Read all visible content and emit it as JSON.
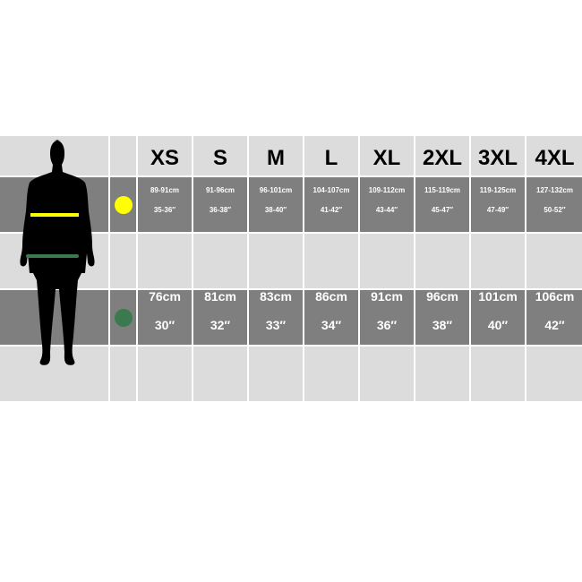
{
  "sizes": [
    "XS",
    "S",
    "M",
    "L",
    "XL",
    "2XL",
    "3XL",
    "4XL"
  ],
  "chest": {
    "indicator_color": "#ffff00",
    "cm": [
      "89-91cm",
      "91-96cm",
      "96-101cm",
      "104-107cm",
      "109-112cm",
      "115-119cm",
      "119-125cm",
      "127-132cm"
    ],
    "inches": [
      "35-36″",
      "36-38″",
      "38-40″",
      "41-42″",
      "43-44″",
      "45-47″",
      "47-49″",
      "50-52″"
    ]
  },
  "waist": {
    "indicator_color": "#3a7a4e",
    "cm": [
      "76cm",
      "81cm",
      "83cm",
      "86cm",
      "91cm",
      "96cm",
      "101cm",
      "106cm"
    ],
    "inches": [
      "30″",
      "32″",
      "33″",
      "34″",
      "36″",
      "38″",
      "40″",
      "42″"
    ]
  }
}
